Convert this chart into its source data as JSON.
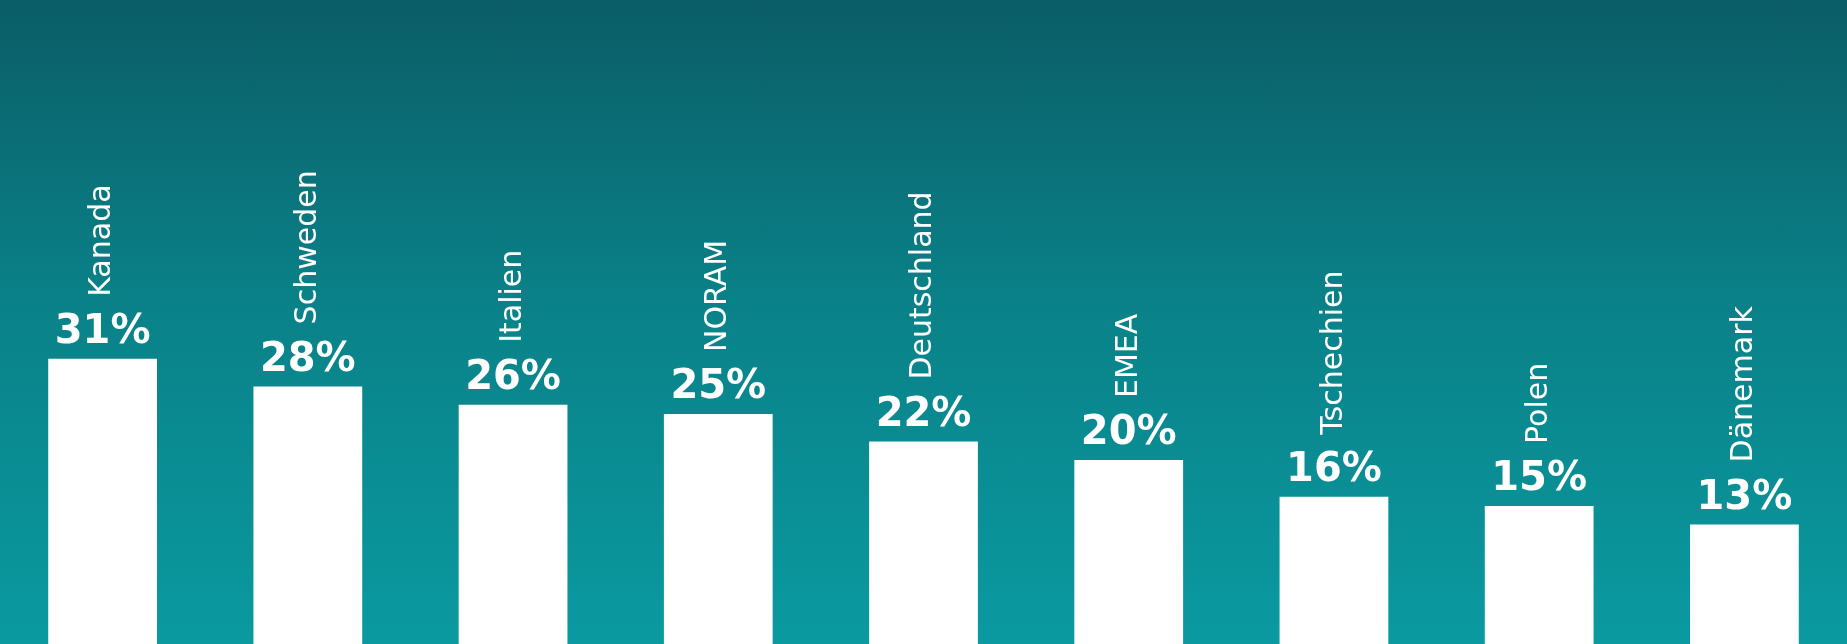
{
  "chart_data": {
    "type": "bar",
    "categories": [
      "Kanada",
      "Schweden",
      "Italien",
      "NORAM",
      "Deutschland",
      "EMEA",
      "Tschechien",
      "Polen",
      "Dänemark"
    ],
    "values": [
      31,
      28,
      26,
      25,
      22,
      20,
      16,
      15,
      13
    ],
    "value_labels": [
      "31%",
      "28%",
      "26%",
      "25%",
      "22%",
      "20%",
      "16%",
      "15%",
      "13%"
    ],
    "color": "#ffffff",
    "tick_labels": false
  }
}
